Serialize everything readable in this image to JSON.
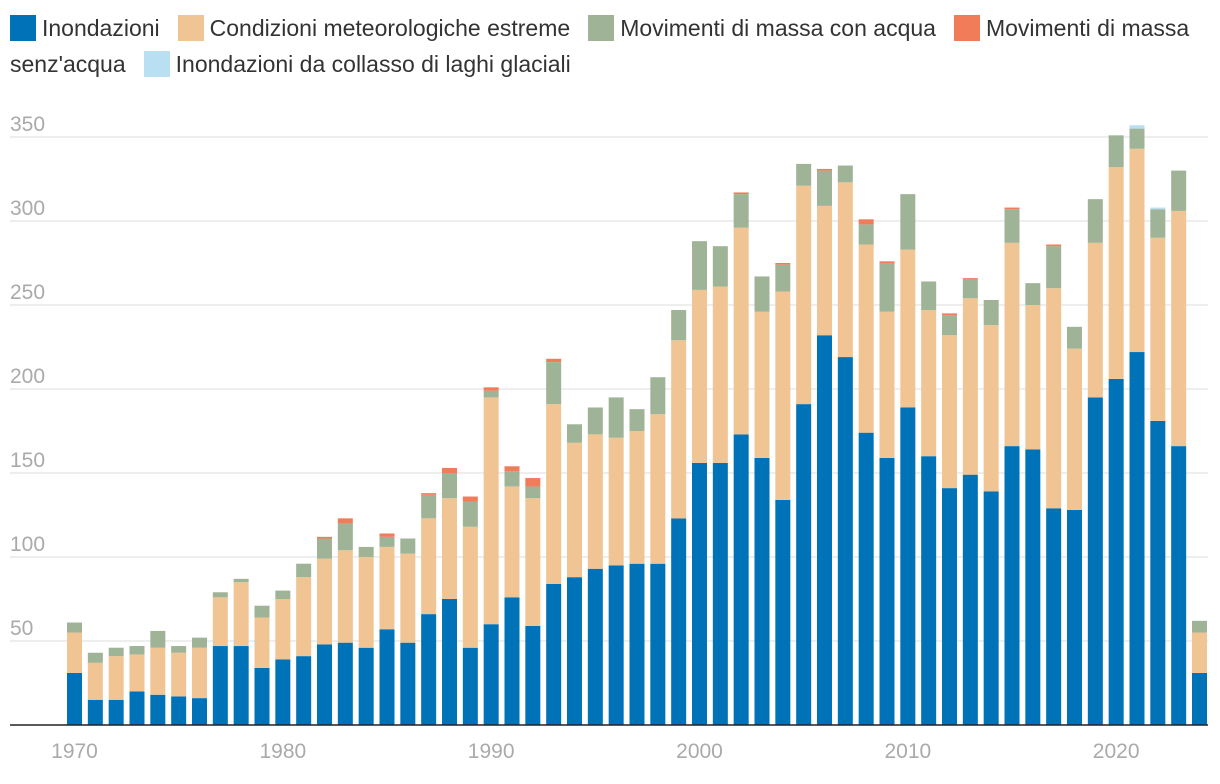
{
  "chart_data": {
    "type": "bar",
    "stacked": true,
    "title": "",
    "xlabel": "",
    "ylabel": "",
    "ylim": [
      0,
      360
    ],
    "yticks": [
      50,
      100,
      150,
      200,
      250,
      300,
      350
    ],
    "xticks": [
      1970,
      1980,
      1990,
      2000,
      2010,
      2020
    ],
    "gridlines": true,
    "legend_position": "top",
    "categories": [
      1970,
      1971,
      1972,
      1973,
      1974,
      1975,
      1976,
      1977,
      1978,
      1979,
      1980,
      1981,
      1982,
      1983,
      1984,
      1985,
      1986,
      1987,
      1988,
      1989,
      1990,
      1991,
      1992,
      1993,
      1994,
      1995,
      1996,
      1997,
      1998,
      1999,
      2000,
      2001,
      2002,
      2003,
      2004,
      2005,
      2006,
      2007,
      2008,
      2009,
      2010,
      2011,
      2012,
      2013,
      2014,
      2015,
      2016,
      2017,
      2018,
      2019,
      2020,
      2021,
      2022,
      2023,
      2024
    ],
    "series": [
      {
        "name": "Inondazioni",
        "color": "#0072b8",
        "values": [
          31,
          15,
          15,
          20,
          18,
          17,
          16,
          47,
          47,
          34,
          39,
          41,
          48,
          49,
          46,
          57,
          49,
          66,
          75,
          46,
          60,
          76,
          59,
          84,
          88,
          93,
          95,
          96,
          96,
          123,
          156,
          156,
          173,
          159,
          134,
          191,
          232,
          219,
          174,
          159,
          189,
          160,
          141,
          149,
          139,
          166,
          164,
          129,
          128,
          195,
          206,
          222,
          181,
          166,
          31
        ]
      },
      {
        "name": "Condizioni meteorologiche estreme",
        "color": "#f0c593",
        "values": [
          24,
          22,
          26,
          22,
          28,
          26,
          30,
          29,
          38,
          30,
          36,
          47,
          51,
          55,
          54,
          49,
          53,
          57,
          60,
          72,
          135,
          66,
          76,
          107,
          80,
          80,
          76,
          79,
          89,
          106,
          103,
          105,
          123,
          87,
          124,
          130,
          77,
          104,
          112,
          87,
          94,
          87,
          91,
          105,
          99,
          121,
          86,
          131,
          96,
          92,
          126,
          121,
          109,
          140,
          24
        ]
      },
      {
        "name": "Movimenti di massa con acqua",
        "color": "#9fb396",
        "values": [
          6,
          6,
          5,
          5,
          10,
          4,
          6,
          3,
          2,
          7,
          5,
          8,
          12,
          16,
          6,
          6,
          9,
          14,
          15,
          15,
          4,
          9,
          7,
          25,
          11,
          16,
          24,
          13,
          22,
          18,
          29,
          24,
          20,
          21,
          16,
          13,
          21,
          10,
          12,
          29,
          33,
          17,
          12,
          11,
          15,
          20,
          13,
          25,
          13,
          26,
          19,
          12,
          17,
          24,
          7
        ]
      },
      {
        "name": "Movimenti di massa senz'acqua",
        "color": "#f07c5a",
        "values": [
          0,
          0,
          0,
          0,
          0,
          0,
          0,
          0,
          0,
          0,
          0,
          0,
          1,
          3,
          0,
          2,
          0,
          1,
          3,
          3,
          2,
          3,
          5,
          2,
          0,
          0,
          0,
          0,
          0,
          0,
          0,
          0,
          1,
          0,
          1,
          0,
          1,
          0,
          3,
          1,
          0,
          0,
          1,
          1,
          0,
          1,
          0,
          1,
          0,
          0,
          0,
          0,
          0,
          0,
          0
        ]
      },
      {
        "name": "Inondazioni da collasso di laghi glaciali",
        "color": "#b8e0f2",
        "values": [
          0,
          0,
          0,
          0,
          0,
          0,
          0,
          0,
          0,
          0,
          0,
          0,
          0,
          0,
          0,
          0,
          0,
          0,
          0,
          0,
          0,
          0,
          0,
          0,
          0,
          0,
          0,
          0,
          0,
          0,
          0,
          0,
          0,
          0,
          0,
          0,
          0,
          0,
          0,
          0,
          0,
          0,
          0,
          0,
          0,
          0,
          0,
          0,
          0,
          0,
          0,
          2,
          1,
          0,
          0
        ]
      }
    ]
  }
}
